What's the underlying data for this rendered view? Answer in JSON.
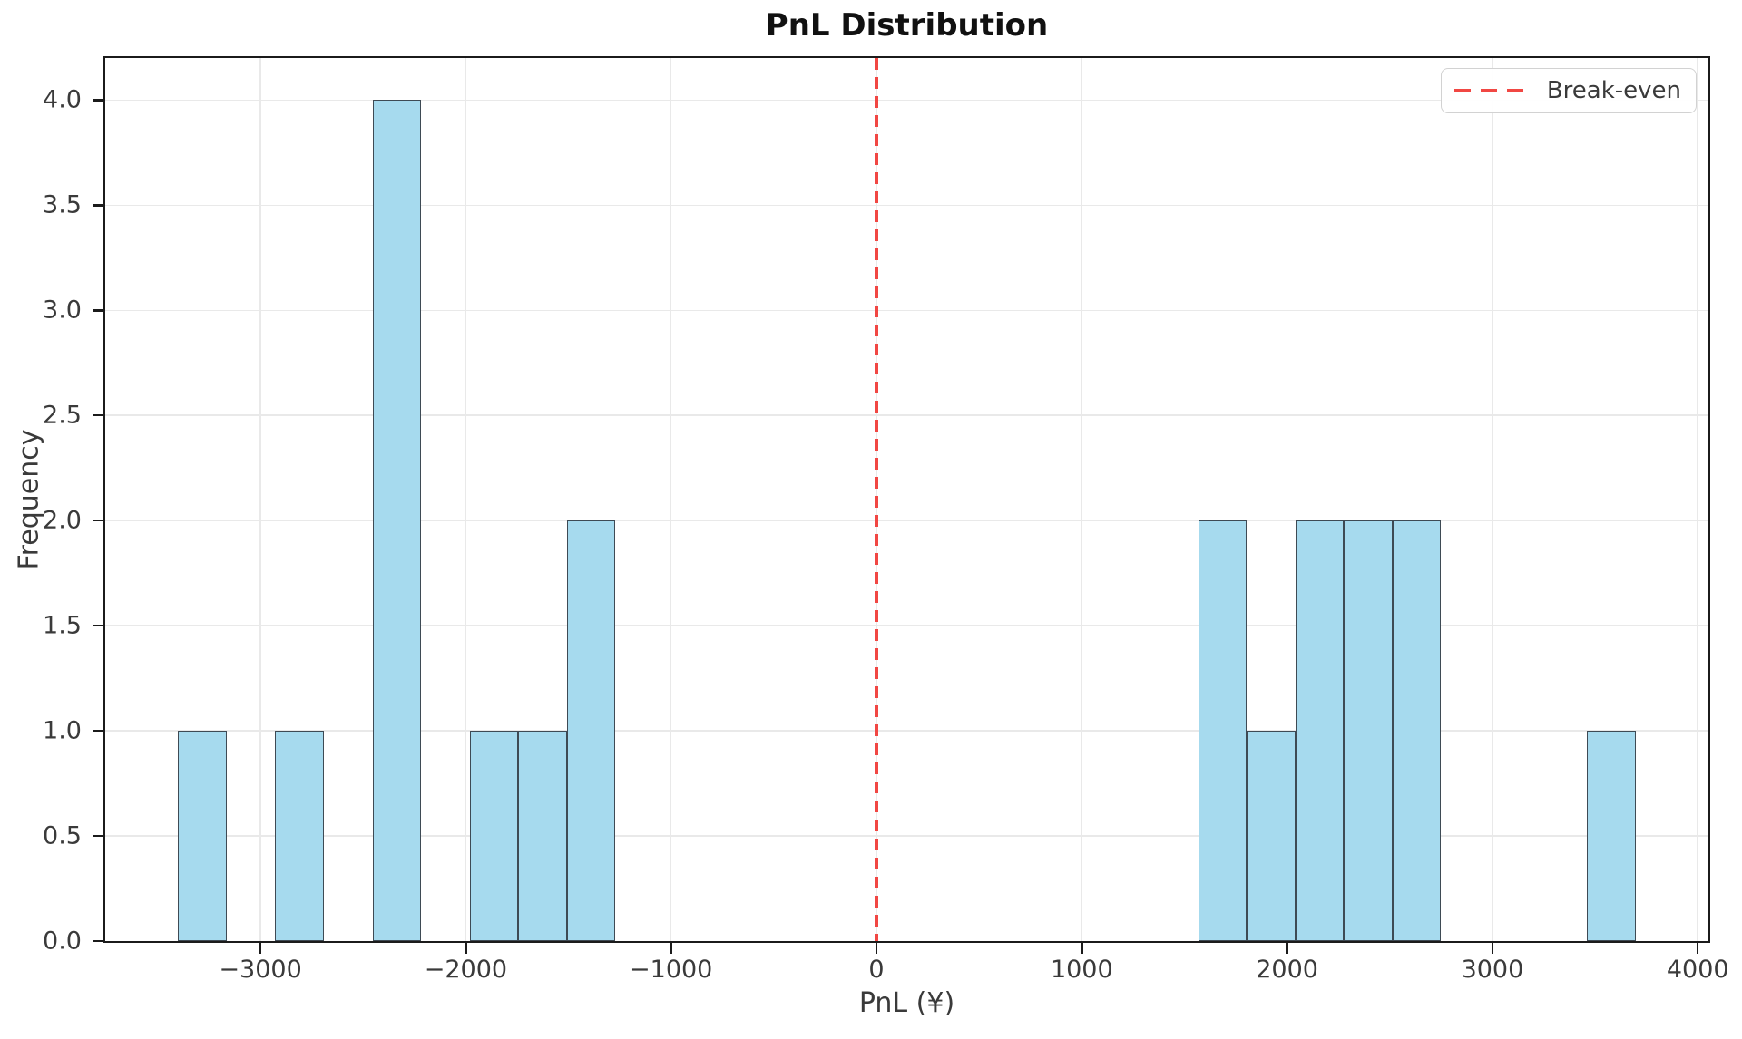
{
  "chart_data": {
    "type": "bar",
    "subtype": "histogram",
    "title": "PnL Distribution",
    "xlabel": "PnL (¥)",
    "ylabel": "Frequency",
    "grid": true,
    "xlim": [
      -3756,
      4052
    ],
    "ylim": [
      0,
      4.2
    ],
    "bin_start": -3401,
    "bin_width": 236.6,
    "n_bins": 30,
    "bin_counts": [
      1,
      0,
      1,
      0,
      4,
      0,
      1,
      1,
      2,
      0,
      0,
      0,
      0,
      0,
      0,
      0,
      0,
      0,
      0,
      0,
      0,
      2,
      1,
      2,
      2,
      2,
      0,
      0,
      0,
      1
    ],
    "x_ticks": [
      {
        "value": -3000,
        "label": "−3000"
      },
      {
        "value": -2000,
        "label": "−2000"
      },
      {
        "value": -1000,
        "label": "−1000"
      },
      {
        "value": 0,
        "label": "0"
      },
      {
        "value": 1000,
        "label": "1000"
      },
      {
        "value": 2000,
        "label": "2000"
      },
      {
        "value": 3000,
        "label": "3000"
      },
      {
        "value": 4000,
        "label": "4000"
      }
    ],
    "y_ticks": [
      {
        "value": 0,
        "label": "0.0"
      },
      {
        "value": 0.5,
        "label": "0.5"
      },
      {
        "value": 1,
        "label": "1.0"
      },
      {
        "value": 1.5,
        "label": "1.5"
      },
      {
        "value": 2,
        "label": "2.0"
      },
      {
        "value": 2.5,
        "label": "2.5"
      },
      {
        "value": 3,
        "label": "3.0"
      },
      {
        "value": 3.5,
        "label": "3.5"
      },
      {
        "value": 4,
        "label": "4.0"
      }
    ],
    "break_even": {
      "x": 0,
      "style": "dashed",
      "color": "#f14743"
    },
    "legend": {
      "position": "top-right",
      "entries": [
        {
          "label": "Break-even",
          "marker": "dashed-line",
          "color": "#f14743"
        }
      ]
    },
    "colors": {
      "bar_fill": "#a6daee",
      "bar_edge": "#3e4a54",
      "break_even_line": "#f14743",
      "gridline": "#e9e9e9",
      "spine": "#1b1b1b",
      "text": "#3a3a3a"
    }
  }
}
